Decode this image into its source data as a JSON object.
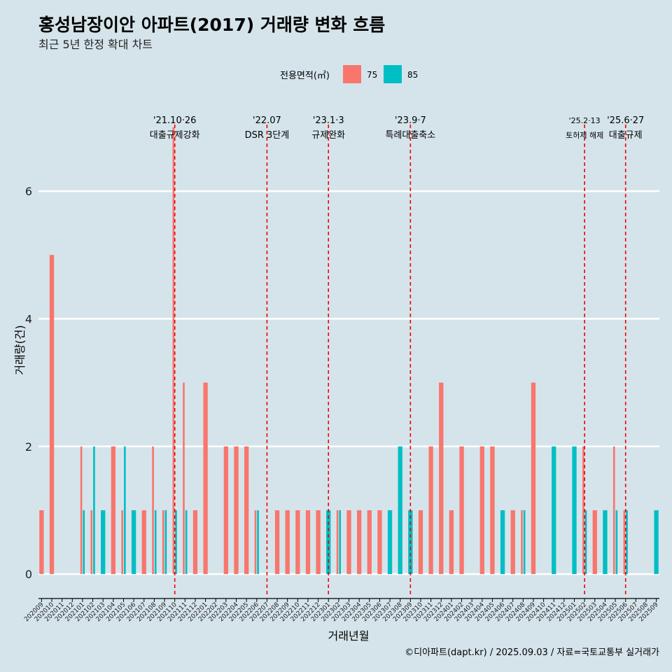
{
  "chart_data": {
    "type": "bar",
    "title": "홍성남장이안 아파트(2017) 거래량 변화 흐름",
    "subtitle": "최근 5년 한정 확대 차트",
    "xlabel": "거래년월",
    "ylabel": "거래량(건)",
    "ylim": [
      -0.35,
      7.35
    ],
    "yticks": [
      0,
      2,
      4,
      6
    ],
    "legend": {
      "title": "전용면적(㎡)",
      "position": "top"
    },
    "caption": "©디아파트(dapt.kr) / 2025.09.03 / 자료=국토교통부 실거래가",
    "months": [
      "202009",
      "202010",
      "202011",
      "202012",
      "202101",
      "202102",
      "202103",
      "202104",
      "202105",
      "202106",
      "202107",
      "202108",
      "202109",
      "202110",
      "202111",
      "202112",
      "202201",
      "202202",
      "202203",
      "202204",
      "202205",
      "202206",
      "202207",
      "202208",
      "202209",
      "202210",
      "202211",
      "202212",
      "202301",
      "202302",
      "202303",
      "202304",
      "202305",
      "202306",
      "202307",
      "202308",
      "202309",
      "202310",
      "202311",
      "202312",
      "202401",
      "202402",
      "202403",
      "202404",
      "202405",
      "202406",
      "202407",
      "202408",
      "202409",
      "202410",
      "202411",
      "202412",
      "202501",
      "202502",
      "202503",
      "202504",
      "202505",
      "202506",
      "202507",
      "202508",
      "202509"
    ],
    "series": [
      {
        "name": "75",
        "color": "#f8766d",
        "values": [
          1,
          5,
          0,
          0,
          2,
          1,
          0,
          2,
          1,
          0,
          1,
          2,
          1,
          7,
          3,
          1,
          3,
          0,
          2,
          2,
          2,
          1,
          0,
          1,
          1,
          1,
          1,
          1,
          0,
          1,
          1,
          1,
          1,
          1,
          0,
          0,
          0,
          1,
          2,
          3,
          1,
          2,
          0,
          2,
          2,
          0,
          1,
          1,
          3,
          0,
          0,
          0,
          0,
          2,
          1,
          0,
          2,
          1,
          0,
          0,
          0
        ]
      },
      {
        "name": "85",
        "color": "#00bfc4",
        "values": [
          0,
          0,
          0,
          0,
          1,
          2,
          1,
          0,
          2,
          1,
          0,
          1,
          1,
          1,
          1,
          0,
          0,
          0,
          0,
          0,
          0,
          1,
          0,
          0,
          0,
          0,
          0,
          0,
          1,
          1,
          0,
          0,
          0,
          0,
          1,
          2,
          1,
          0,
          0,
          0,
          0,
          0,
          0,
          0,
          0,
          1,
          0,
          1,
          0,
          0,
          2,
          0,
          2,
          1,
          0,
          1,
          1,
          1,
          0,
          0,
          1
        ]
      }
    ],
    "events": [
      {
        "date": "'21.10·26",
        "label": "대출규제강화",
        "month_index": 13
      },
      {
        "date": "'22.07",
        "label": "DSR 3단계",
        "month_index": 22
      },
      {
        "date": "'23.1·3",
        "label": "규제완화",
        "month_index": 28
      },
      {
        "date": "'23.9·7",
        "label": "특례대출축소",
        "month_index": 36
      },
      {
        "date": "'25.2·13",
        "label": "토허제 해제",
        "month_index": 53
      },
      {
        "date": "'25.6·27",
        "label": "대출규제",
        "month_index": 57
      }
    ]
  }
}
